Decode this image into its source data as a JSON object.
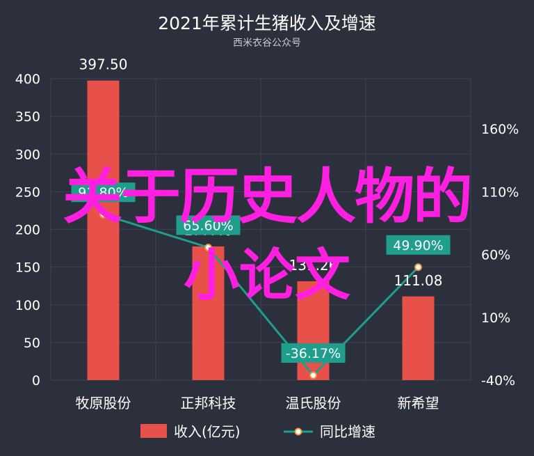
{
  "chart_data": {
    "type": "bar",
    "title": "2021年累计生猪收入及增速",
    "subtitle": "西米衣谷公众号",
    "categories": [
      "牧原股份",
      "正邦科技",
      "温氏股份",
      "新希望"
    ],
    "series": [
      {
        "name": "收入(亿元)",
        "type": "bar",
        "axis": "left",
        "values": [
          397.5,
          177.4,
          131.26,
          111.08
        ],
        "labels": [
          "397.50",
          "177.40",
          "131.26",
          "111.08"
        ],
        "color": "#e8514a"
      },
      {
        "name": "同比增速",
        "type": "line",
        "axis": "right",
        "values": [
          91.8,
          65.6,
          -36.17,
          49.9
        ],
        "labels": [
          "91.80%",
          "65.60%",
          "-36.17%",
          "49.90%"
        ],
        "color": "#1f9e8c"
      }
    ],
    "y_left": {
      "ylim": [
        0,
        400
      ],
      "ticks": [
        "0",
        "50",
        "100",
        "150",
        "200",
        "250",
        "300",
        "350",
        "400"
      ]
    },
    "y_right": {
      "ylim": [
        -40,
        200
      ],
      "ticks": [
        "-40%",
        "10%",
        "60%",
        "110%",
        "160%"
      ],
      "tick_values": [
        -40,
        10,
        60,
        110,
        160
      ]
    },
    "legend": {
      "placement": "bottom",
      "items": [
        "收入(亿元)",
        "同比增速"
      ]
    },
    "grid": true
  },
  "overlay": {
    "line1": "关于历史人物的",
    "line2": "小论文"
  },
  "colors": {
    "background": "#2b303c",
    "grid": "#3c4352",
    "text": "#ffffff",
    "overlay": "#ff1fe1"
  }
}
